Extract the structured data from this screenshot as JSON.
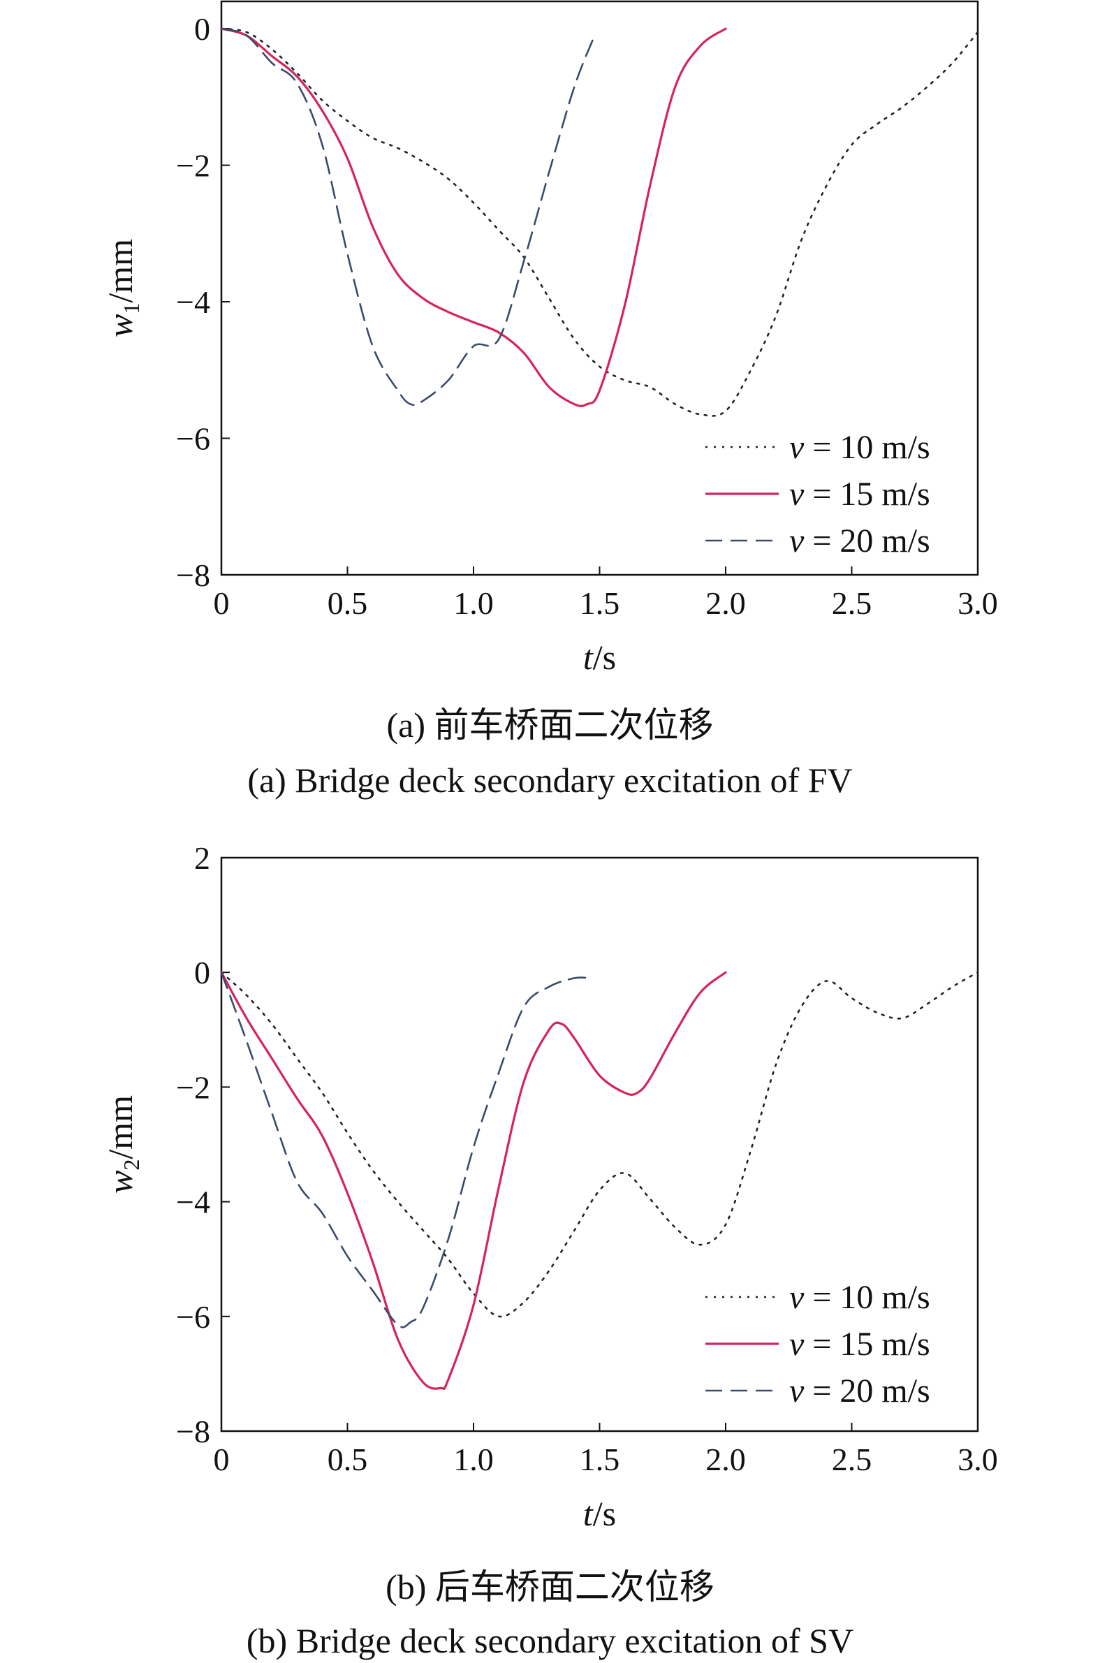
{
  "captions": {
    "a_zh": "(a) 前车桥面二次位移",
    "a_en": "(a) Bridge deck secondary excitation of FV",
    "b_zh": "(b) 后车桥面二次位移",
    "b_en": "(b) Bridge deck secondary excitation of SV"
  },
  "chart_data": [
    {
      "type": "line",
      "xlabel_italic": "t",
      "xlabel_unit": "/s",
      "ylabel_italic": "w",
      "ylabel_sub": "1",
      "ylabel_unit": "/mm",
      "xlim": [
        0,
        3.0
      ],
      "ylim": [
        -8,
        0.4
      ],
      "xticks": [
        0,
        0.5,
        1.0,
        1.5,
        2.0,
        2.5,
        3.0
      ],
      "xtick_labels": [
        "0",
        "0.5",
        "1.0",
        "1.5",
        "2.0",
        "2.5",
        "3.0"
      ],
      "yticks": [
        -8,
        -6,
        -4,
        -2,
        0
      ],
      "ytick_labels": [
        "−8",
        "−6",
        "−4",
        "−2",
        "0"
      ],
      "grid": false,
      "legend_position": "bottom-right",
      "series": [
        {
          "name": "v = 10 m/s",
          "name_italic": "v",
          "name_rest": " = 10 m/s",
          "color": "#222222",
          "dash": "dotted",
          "x": [
            0,
            0.1,
            0.2,
            0.3,
            0.4,
            0.5,
            0.6,
            0.7,
            0.8,
            0.9,
            1.0,
            1.1,
            1.2,
            1.3,
            1.4,
            1.5,
            1.6,
            1.7,
            1.8,
            1.9,
            2.0,
            2.1,
            2.2,
            2.3,
            2.4,
            2.5,
            2.6,
            2.7,
            2.8,
            2.9,
            3.0
          ],
          "y": [
            0,
            -0.05,
            -0.3,
            -0.65,
            -1.05,
            -1.35,
            -1.6,
            -1.75,
            -1.95,
            -2.2,
            -2.55,
            -2.95,
            -3.35,
            -3.95,
            -4.55,
            -4.95,
            -5.15,
            -5.25,
            -5.5,
            -5.65,
            -5.6,
            -5.0,
            -4.2,
            -3.1,
            -2.3,
            -1.7,
            -1.4,
            -1.15,
            -0.85,
            -0.5,
            -0.05
          ]
        },
        {
          "name": "v = 15 m/s",
          "name_italic": "v",
          "name_rest": " = 15 m/s",
          "color": "#d6245a",
          "dash": "solid",
          "x": [
            0,
            0.1,
            0.2,
            0.3,
            0.4,
            0.5,
            0.6,
            0.7,
            0.8,
            0.9,
            1.0,
            1.1,
            1.2,
            1.3,
            1.4,
            1.45,
            1.5,
            1.6,
            1.7,
            1.8,
            1.9,
            2.0
          ],
          "y": [
            0,
            -0.1,
            -0.4,
            -0.7,
            -1.2,
            -1.9,
            -2.9,
            -3.6,
            -3.95,
            -4.15,
            -4.3,
            -4.45,
            -4.75,
            -5.25,
            -5.5,
            -5.5,
            -5.3,
            -4.05,
            -2.3,
            -0.85,
            -0.25,
            0
          ]
        },
        {
          "name": "v = 20 m/s",
          "name_italic": "v",
          "name_rest": " = 20 m/s",
          "color": "#3a4a6b",
          "dash": "dashed",
          "x": [
            0,
            0.1,
            0.2,
            0.3,
            0.4,
            0.5,
            0.6,
            0.7,
            0.75,
            0.8,
            0.9,
            1.0,
            1.1,
            1.2,
            1.3,
            1.4,
            1.48
          ],
          "y": [
            0,
            -0.1,
            -0.5,
            -0.8,
            -1.7,
            -3.3,
            -4.65,
            -5.3,
            -5.5,
            -5.45,
            -5.15,
            -4.65,
            -4.55,
            -3.4,
            -2.1,
            -0.85,
            -0.1
          ]
        }
      ]
    },
    {
      "type": "line",
      "xlabel_italic": "t",
      "xlabel_unit": "/s",
      "ylabel_italic": "w",
      "ylabel_sub": "2",
      "ylabel_unit": "/mm",
      "xlim": [
        0,
        3.0
      ],
      "ylim": [
        -8,
        2
      ],
      "xticks": [
        0,
        0.5,
        1.0,
        1.5,
        2.0,
        2.5,
        3.0
      ],
      "xtick_labels": [
        "0",
        "0.5",
        "1.0",
        "1.5",
        "2.0",
        "2.5",
        "3.0"
      ],
      "yticks": [
        -8,
        -6,
        -4,
        -2,
        0,
        2
      ],
      "ytick_labels": [
        "−8",
        "−6",
        "−4",
        "−2",
        "0",
        "2"
      ],
      "grid": false,
      "legend_position": "bottom-right",
      "series": [
        {
          "name": "v = 10 m/s",
          "name_italic": "v",
          "name_rest": " = 10 m/s",
          "color": "#222222",
          "dash": "dotted",
          "x": [
            0,
            0.1,
            0.2,
            0.3,
            0.4,
            0.5,
            0.6,
            0.7,
            0.8,
            0.9,
            1.0,
            1.1,
            1.2,
            1.3,
            1.4,
            1.5,
            1.6,
            1.7,
            1.8,
            1.9,
            2.0,
            2.1,
            2.2,
            2.3,
            2.4,
            2.5,
            2.6,
            2.7,
            2.8,
            2.9,
            3.0
          ],
          "y": [
            0,
            -0.4,
            -0.9,
            -1.5,
            -2.1,
            -2.8,
            -3.45,
            -4.0,
            -4.5,
            -5.0,
            -5.6,
            -6.0,
            -5.75,
            -5.2,
            -4.5,
            -3.8,
            -3.5,
            -3.95,
            -4.45,
            -4.75,
            -4.4,
            -3.1,
            -1.6,
            -0.6,
            -0.15,
            -0.45,
            -0.7,
            -0.8,
            -0.55,
            -0.25,
            0
          ]
        },
        {
          "name": "v = 15 m/s",
          "name_italic": "v",
          "name_rest": " = 15 m/s",
          "color": "#d6245a",
          "dash": "solid",
          "x": [
            0,
            0.1,
            0.2,
            0.3,
            0.4,
            0.5,
            0.6,
            0.7,
            0.8,
            0.87,
            0.9,
            1.0,
            1.1,
            1.2,
            1.3,
            1.35,
            1.4,
            1.5,
            1.6,
            1.65,
            1.7,
            1.8,
            1.9,
            2.0
          ],
          "y": [
            0,
            -0.8,
            -1.5,
            -2.2,
            -2.85,
            -3.85,
            -5.05,
            -6.4,
            -7.15,
            -7.25,
            -7.1,
            -5.8,
            -3.75,
            -1.9,
            -1.0,
            -0.9,
            -1.15,
            -1.8,
            -2.1,
            -2.1,
            -1.85,
            -1.05,
            -0.35,
            0
          ]
        },
        {
          "name": "v = 20 m/s",
          "name_italic": "v",
          "name_rest": " = 20 m/s",
          "color": "#3a4a6b",
          "dash": "dashed",
          "x": [
            0,
            0.1,
            0.2,
            0.3,
            0.4,
            0.5,
            0.6,
            0.7,
            0.75,
            0.8,
            0.9,
            1.0,
            1.1,
            1.2,
            1.3,
            1.4,
            1.46
          ],
          "y": [
            0,
            -1.2,
            -2.45,
            -3.65,
            -4.2,
            -4.95,
            -5.55,
            -6.15,
            -6.1,
            -5.85,
            -4.65,
            -3.05,
            -1.75,
            -0.6,
            -0.25,
            -0.1,
            -0.1
          ]
        }
      ]
    }
  ]
}
